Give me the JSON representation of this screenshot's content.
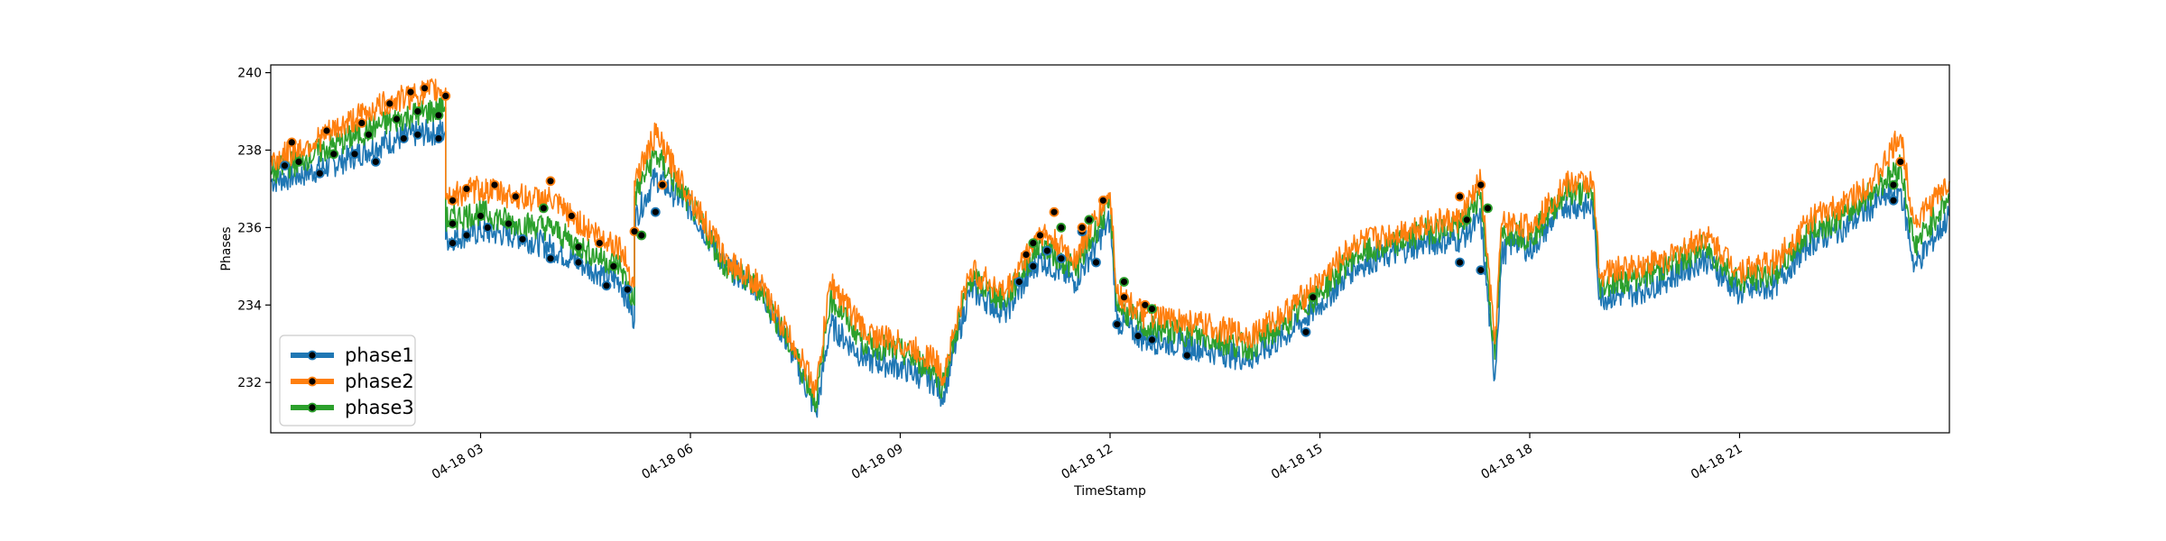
{
  "chart_data": {
    "type": "line",
    "title": "",
    "xlabel": "TimeStamp",
    "ylabel": "Phases",
    "xlim": [
      "04-18 00:00",
      "04-18 24:00"
    ],
    "ylim": [
      230.7,
      240.2
    ],
    "grid": false,
    "legend_position": "lower-left",
    "x_ticks": [
      {
        "label": "04-18 03",
        "x": 3
      },
      {
        "label": "04-18 06",
        "x": 6
      },
      {
        "label": "04-18 09",
        "x": 9
      },
      {
        "label": "04-18 12",
        "x": 12
      },
      {
        "label": "04-18 15",
        "x": 15
      },
      {
        "label": "04-18 18",
        "x": 18
      },
      {
        "label": "04-18 21",
        "x": 21
      }
    ],
    "y_ticks": [
      {
        "label": "232",
        "y": 232
      },
      {
        "label": "234",
        "y": 234
      },
      {
        "label": "236",
        "y": 236
      },
      {
        "label": "238",
        "y": 238
      },
      {
        "label": "240",
        "y": 240
      }
    ],
    "x_unit": "hour of 04-18",
    "series": [
      {
        "name": "phase1",
        "color": "#1f77b4",
        "x": [
          0,
          0.5,
          1,
          1.5,
          2,
          2.5,
          2.5,
          3,
          3.5,
          4,
          4.5,
          5,
          5.2,
          5.2,
          5.5,
          6,
          6.5,
          7,
          7.5,
          7.8,
          8,
          8.5,
          9,
          9.5,
          9.6,
          10,
          10.5,
          11,
          11.5,
          12,
          12.1,
          12.5,
          13,
          13.5,
          14,
          14.5,
          15,
          15.5,
          16,
          16.5,
          17,
          17.3,
          17.5,
          17.6,
          17.8,
          18,
          18.5,
          18.9,
          19,
          19.5,
          20,
          20.5,
          21,
          21.5,
          22,
          22.5,
          23,
          23.3,
          23.5,
          24
        ],
        "y": [
          237.2,
          237.4,
          237.7,
          238.1,
          238.4,
          238.5,
          235.7,
          235.9,
          235.8,
          235.5,
          235,
          234.6,
          233.6,
          236.2,
          237.3,
          236.5,
          235,
          234.4,
          232.6,
          231.2,
          233.5,
          232.6,
          232.4,
          232,
          231.6,
          234.4,
          233.8,
          235.2,
          234.6,
          236.2,
          233.6,
          233.1,
          233,
          232.8,
          232.6,
          233.2,
          234,
          235,
          235.3,
          235.6,
          235.7,
          236.2,
          232.1,
          235.3,
          235.7,
          235.4,
          236.6,
          236.5,
          234.2,
          234.3,
          234.7,
          235.2,
          234.3,
          234.5,
          235.6,
          236,
          236.7,
          237,
          235,
          236.3
        ]
      },
      {
        "name": "phase2",
        "color": "#ff7f0e",
        "x": [
          0,
          0.5,
          1,
          1.5,
          2,
          2.5,
          2.5,
          3,
          3.5,
          4,
          4.5,
          5,
          5.2,
          5.2,
          5.5,
          6,
          6.5,
          7,
          7.5,
          7.8,
          8,
          8.5,
          9,
          9.5,
          9.6,
          10,
          10.5,
          11,
          11.5,
          12,
          12.1,
          12.5,
          13,
          13.5,
          14,
          14.5,
          15,
          15.5,
          16,
          16.5,
          17,
          17.3,
          17.5,
          17.6,
          17.8,
          18,
          18.5,
          18.9,
          19,
          19.5,
          20,
          20.5,
          21,
          21.5,
          22,
          22.5,
          23,
          23.3,
          23.5,
          24
        ],
        "y": [
          237.7,
          238.1,
          238.6,
          239.1,
          239.4,
          239.6,
          236.8,
          237,
          236.8,
          236.7,
          236,
          235.5,
          234.5,
          237.2,
          238.4,
          236.8,
          235.2,
          234.5,
          232.9,
          231.8,
          234.6,
          233.3,
          233,
          232.6,
          232.1,
          234.9,
          234.3,
          235.9,
          235.2,
          236.9,
          234.3,
          233.7,
          233.6,
          233.4,
          233.2,
          233.8,
          234.6,
          235.6,
          235.8,
          236.1,
          236.2,
          237.2,
          233,
          236.1,
          236.1,
          236,
          237.1,
          237.2,
          234.8,
          235,
          235.2,
          235.8,
          234.9,
          235.1,
          236.2,
          236.6,
          237.4,
          238.4,
          236.1,
          237.2
        ]
      },
      {
        "name": "phase3",
        "color": "#2ca02c",
        "x": [
          0,
          0.5,
          1,
          1.5,
          2,
          2.5,
          2.5,
          3,
          3.5,
          4,
          4.5,
          5,
          5.2,
          5.2,
          5.5,
          6,
          6.5,
          7,
          7.5,
          7.8,
          8,
          8.5,
          9,
          9.5,
          9.6,
          10,
          10.5,
          11,
          11.5,
          12,
          12.1,
          12.5,
          13,
          13.5,
          14,
          14.5,
          15,
          15.5,
          16,
          16.5,
          17,
          17.3,
          17.5,
          17.6,
          17.8,
          18,
          18.5,
          18.9,
          19,
          19.5,
          20,
          20.5,
          21,
          21.5,
          22,
          22.5,
          23,
          23.3,
          23.5,
          24
        ],
        "y": [
          237.4,
          237.8,
          238.2,
          238.6,
          238.9,
          239.1,
          236.2,
          236.4,
          236.1,
          236,
          235.4,
          235,
          234,
          236.8,
          237.9,
          236.6,
          235,
          234.4,
          232.7,
          231.5,
          234.2,
          233,
          232.8,
          232.3,
          231.9,
          234.7,
          234.1,
          235.6,
          234.9,
          236.6,
          234,
          233.4,
          233.3,
          233.1,
          232.9,
          233.5,
          234.3,
          235.3,
          235.5,
          235.9,
          236,
          236.9,
          232.6,
          235.8,
          235.9,
          235.7,
          236.9,
          236.9,
          234.5,
          234.7,
          235,
          235.5,
          234.6,
          234.8,
          235.9,
          236.3,
          237.1,
          237.6,
          235.5,
          236.8
        ]
      }
    ],
    "markers": [
      {
        "series": "phase1",
        "x": [
          0.2,
          0.7,
          1.2,
          1.5,
          1.9,
          2.1,
          2.4,
          2.6,
          2.8,
          3.1,
          3.6,
          4,
          4.4,
          4.8,
          5.1,
          5.5,
          10.7,
          10.9,
          11.1,
          11.3,
          11.6,
          11.8,
          12.1,
          12.4,
          12.6,
          13.1,
          14.8,
          17,
          17.3,
          23.2
        ],
        "y": [
          237.6,
          237.4,
          237.9,
          237.7,
          238.3,
          238.4,
          238.3,
          235.6,
          235.8,
          236,
          235.7,
          235.2,
          235.1,
          234.5,
          234.4,
          236.4,
          234.6,
          235,
          235.4,
          235.2,
          235.9,
          235.1,
          233.5,
          233.2,
          233.1,
          232.7,
          233.3,
          235.1,
          234.9,
          236.7
        ]
      },
      {
        "series": "phase2",
        "x": [
          0.3,
          0.8,
          1.3,
          1.7,
          2,
          2.2,
          2.5,
          2.6,
          2.8,
          3.2,
          3.5,
          4,
          4.3,
          4.7,
          5.2,
          5.6,
          10.8,
          11,
          11.2,
          11.6,
          11.9,
          12.2,
          12.5,
          17,
          17.3,
          23.3
        ],
        "y": [
          238.2,
          238.5,
          238.7,
          239.2,
          239.5,
          239.6,
          239.4,
          236.7,
          237,
          237.1,
          236.8,
          237.2,
          236.3,
          235.6,
          235.9,
          237.1,
          235.3,
          235.8,
          236.4,
          236,
          236.7,
          234.2,
          234,
          236.8,
          237.1,
          237.7
        ]
      },
      {
        "series": "phase3",
        "x": [
          0.4,
          0.9,
          1.4,
          1.8,
          2.1,
          2.4,
          2.6,
          3,
          3.4,
          3.9,
          4.4,
          4.9,
          5.3,
          10.9,
          11.3,
          11.7,
          12.2,
          12.6,
          14.9,
          17.1,
          17.4,
          23.2
        ],
        "y": [
          237.7,
          237.9,
          238.4,
          238.8,
          239,
          238.9,
          236.1,
          236.3,
          236.1,
          236.5,
          235.5,
          235,
          235.8,
          235.6,
          236,
          236.2,
          234.6,
          233.9,
          234.2,
          236.2,
          236.5,
          237.1
        ]
      }
    ]
  }
}
